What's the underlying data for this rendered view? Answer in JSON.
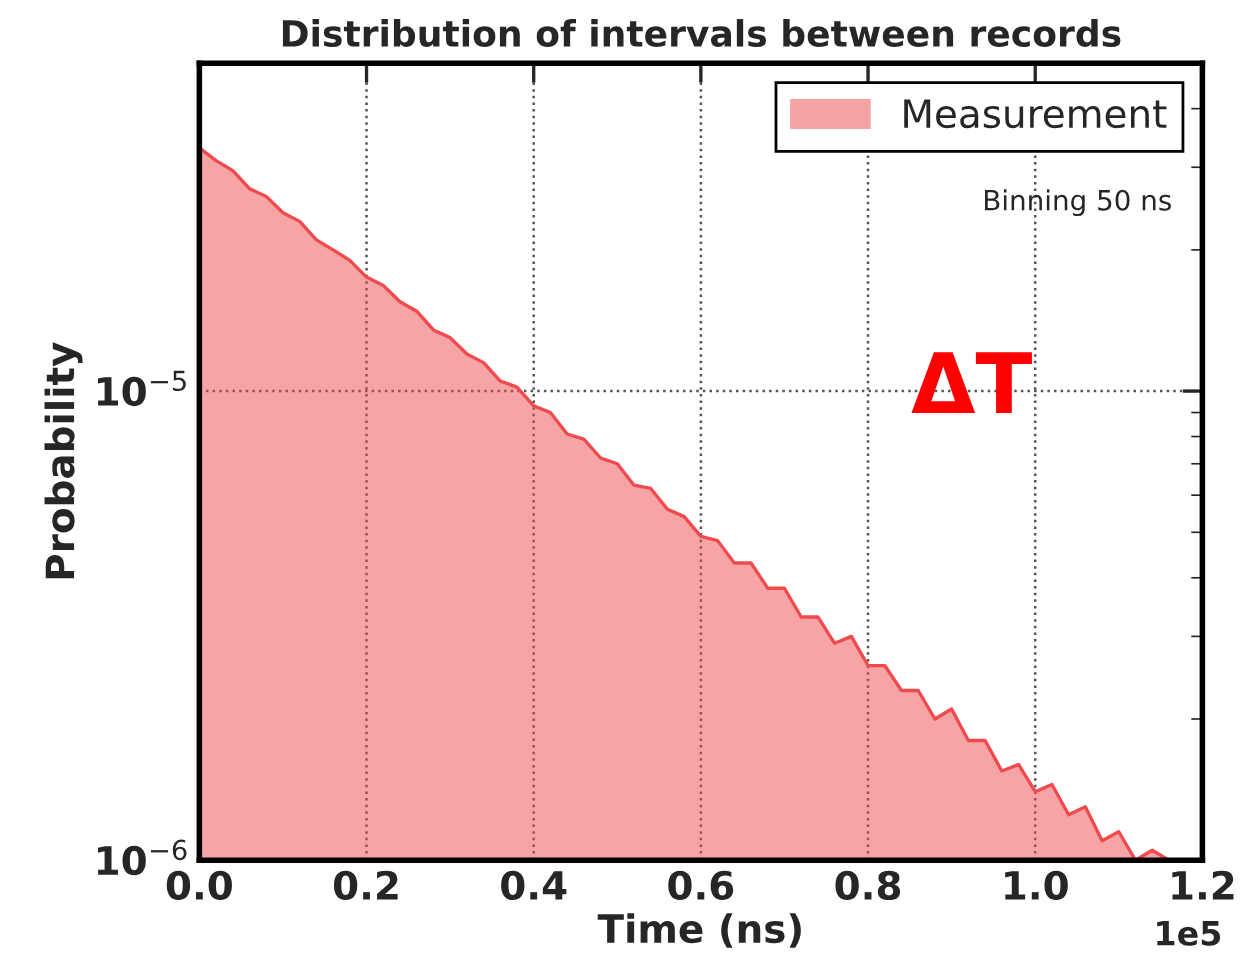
{
  "chart_data": {
    "type": "area",
    "title": "Distribution of intervals between records",
    "xlabel": "Time (ns)",
    "ylabel": "Probability",
    "x": [
      0,
      0.02,
      0.04,
      0.06,
      0.08,
      0.1,
      0.12,
      0.14,
      0.16,
      0.18,
      0.2,
      0.22,
      0.24,
      0.26,
      0.28,
      0.3,
      0.32,
      0.34,
      0.36,
      0.38,
      0.4,
      0.42,
      0.44,
      0.46,
      0.48,
      0.5,
      0.52,
      0.54,
      0.56,
      0.58,
      0.6,
      0.62,
      0.64,
      0.66,
      0.68,
      0.7,
      0.72,
      0.74,
      0.76,
      0.78,
      0.8,
      0.82,
      0.84,
      0.86,
      0.88,
      0.9,
      0.92,
      0.94,
      0.96,
      0.98,
      1.0,
      1.02,
      1.04,
      1.06,
      1.08,
      1.1,
      1.12,
      1.14,
      1.16
    ],
    "series": [
      {
        "name": "Measurement",
        "color": "#ef4a4e",
        "values": [
          3.3e-05,
          3.1e-05,
          2.95e-05,
          2.7e-05,
          2.6e-05,
          2.4e-05,
          2.3e-05,
          2.1e-05,
          2e-05,
          1.9e-05,
          1.75e-05,
          1.68e-05,
          1.55e-05,
          1.48e-05,
          1.35e-05,
          1.3e-05,
          1.2e-05,
          1.15e-05,
          1.05e-05,
          1.02e-05,
          9.3e-06,
          9e-06,
          8.1e-06,
          7.9e-06,
          7.2e-06,
          7e-06,
          6.3e-06,
          6.2e-06,
          5.6e-06,
          5.4e-06,
          4.9e-06,
          4.8e-06,
          4.3e-06,
          4.3e-06,
          3.8e-06,
          3.8e-06,
          3.3e-06,
          3.3e-06,
          2.9e-06,
          3e-06,
          2.6e-06,
          2.6e-06,
          2.3e-06,
          2.3e-06,
          2e-06,
          2.1e-06,
          1.8e-06,
          1.8e-06,
          1.55e-06,
          1.6e-06,
          1.4e-06,
          1.45e-06,
          1.25e-06,
          1.3e-06,
          1.1e-06,
          1.15e-06,
          1e-06,
          1.05e-06,
          1e-06
        ]
      }
    ],
    "xlim": [
      0,
      1.2
    ],
    "xticks": [
      {
        "value": 0,
        "label": "0.0"
      },
      0.2,
      0.4,
      0.6,
      0.8,
      {
        "value": 1.0,
        "label": "1.0"
      },
      1.2
    ],
    "ylim": [
      1e-06,
      5e-05
    ],
    "yticks": [
      {
        "value": 1e-06,
        "label": "10$^{−6}$"
      },
      {
        "value": 1e-05,
        "label": "10$^{−5}$"
      }
    ],
    "log": "y",
    "grid": true,
    "legend": "top right",
    "annotations": [
      "Binning 50 ns",
      "ΔT",
      "1e5"
    ]
  }
}
